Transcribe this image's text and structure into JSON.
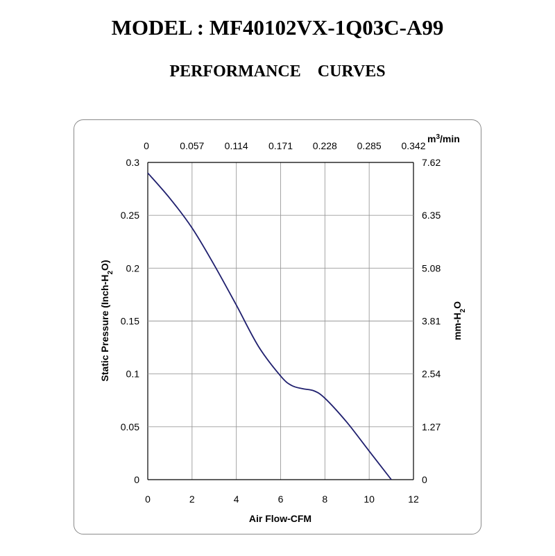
{
  "header": {
    "model": "MODEL : MF40102VX-1Q03C-A99",
    "subtitle": "PERFORMANCE    CURVES"
  },
  "chart_data": {
    "type": "line",
    "xlabel": "Air Flow-CFM",
    "ylabel_left": "Static Pressure (Inch-H",
    "ylabel_left_sub": "2",
    "ylabel_left_end": "O)",
    "ylabel_right": "mm-H",
    "ylabel_right_sub": "2",
    "ylabel_right_end": "O",
    "top_unit": "m",
    "top_unit_sup": "3",
    "top_unit_end": "/min",
    "xlim": [
      0,
      12
    ],
    "ylim": [
      0,
      0.3
    ],
    "x_ticks": [
      "0",
      "2",
      "4",
      "6",
      "8",
      "10",
      "12"
    ],
    "y_left_ticks": [
      "0",
      "0.05",
      "0.1",
      "0.15",
      "0.2",
      "0.25",
      "0.3"
    ],
    "y_right_ticks": [
      "0",
      "1.27",
      "2.54",
      "3.81",
      "5.08",
      "6.35",
      "7.62"
    ],
    "top_ticks": [
      "0",
      "0.057",
      "0.114",
      "0.171",
      "0.228",
      "0.285",
      "0.342"
    ],
    "grid": true,
    "line_color": "#1f1f6e",
    "series": [
      {
        "x": [
          0,
          1,
          2,
          3,
          4,
          5,
          6,
          6.5,
          7,
          7.5,
          8,
          9,
          10,
          11
        ],
        "y": [
          0.29,
          0.266,
          0.238,
          0.203,
          0.165,
          0.126,
          0.098,
          0.089,
          0.086,
          0.084,
          0.077,
          0.054,
          0.027,
          0.0
        ]
      }
    ]
  }
}
